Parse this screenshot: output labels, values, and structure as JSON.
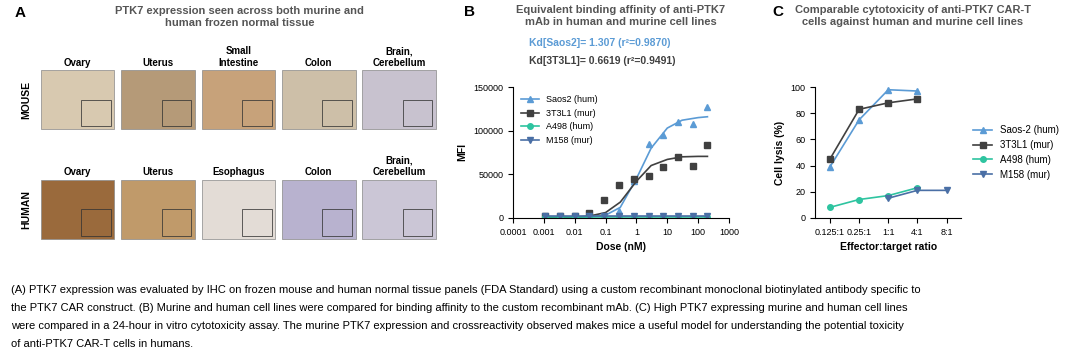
{
  "panel_a": {
    "panel_label": "A",
    "title": "PTK7 expression seen across both murine and human frozen normal tissue",
    "rows": [
      {
        "label": "MOUSE",
        "tissues": [
          "Ovary",
          "Uterus",
          "Small Intestine",
          "Colon",
          "Brain, Cerebellum"
        ]
      },
      {
        "label": "HUMAN",
        "tissues": [
          "Ovary",
          "Uterus",
          "Esophagus",
          "Colon",
          "Brain, Cerebellum"
        ]
      }
    ]
  },
  "chart_data": [
    {
      "type": "scatter",
      "panel_label": "B",
      "title": "Equivalent binding affinity of anti-PTK7 mAb in human and murine cell lines",
      "x_label": "Dose (nM)",
      "y_label": "MFI",
      "log": "x",
      "grid": false,
      "legend": "upper left",
      "xlim": [
        0.0001,
        1000
      ],
      "xticks": [
        0.0001,
        0.001,
        0.01,
        0.1,
        1,
        10,
        100,
        1000
      ],
      "ylim": [
        0,
        150000
      ],
      "yticks": [
        0,
        50000,
        100000,
        150000
      ],
      "annotations": [
        {
          "text": "Kd[Saos2]= 1.307 (r²=0.9870)",
          "color": "#5b9bd5"
        },
        {
          "text": "Kd[3T3L1]= 0.6619 (r²=0.9491)",
          "color": "#404040"
        }
      ],
      "x": [
        0.0011,
        0.0034,
        0.01,
        0.03,
        0.09,
        0.27,
        0.82,
        2.5,
        7.4,
        22,
        67,
        200
      ],
      "fit_x": [
        0.001,
        0.01,
        0.03,
        0.1,
        0.3,
        1,
        3,
        10,
        30,
        100,
        200
      ],
      "series": [
        {
          "name": "Saos2 (hum)",
          "color": "#5b9bd5",
          "marker": "triangle_up",
          "values": [
            1500,
            1500,
            1500,
            2000,
            3000,
            8000,
            42000,
            85000,
            95000,
            110000,
            108000,
            127000
          ],
          "fit_values": [
            0,
            200,
            1000,
            3000,
            12000,
            45000,
            80000,
            103000,
            112000,
            115000,
            116000
          ]
        },
        {
          "name": "3T3L1 (mur)",
          "color": "#404040",
          "marker": "square",
          "values": [
            1500,
            1500,
            2000,
            6000,
            20000,
            38000,
            45000,
            48000,
            58000,
            70000,
            60000,
            83000
          ],
          "fit_values": [
            0,
            500,
            2000,
            6000,
            18000,
            42000,
            60000,
            67000,
            70000,
            70500,
            70500
          ]
        },
        {
          "name": "A498 (hum)",
          "color": "#2ec4a0",
          "marker": "circle",
          "values": [
            1000,
            1000,
            1000,
            1000,
            1000,
            1000,
            1000,
            1000,
            1000,
            1000,
            1000,
            1000
          ],
          "fit_values": [
            1000,
            1000,
            1000,
            1000,
            1000,
            1000,
            1000,
            1000,
            1000,
            1000,
            1000
          ]
        },
        {
          "name": "M158 (mur)",
          "color": "#4a6fa5",
          "marker": "triangle_down",
          "values": [
            1500,
            1500,
            1500,
            1500,
            1500,
            1500,
            1500,
            1500,
            1500,
            1500,
            1500,
            1500
          ],
          "fit_values": [
            1500,
            1500,
            1500,
            1500,
            1500,
            1500,
            1500,
            1500,
            1500,
            1500,
            1500
          ]
        }
      ]
    },
    {
      "type": "line",
      "panel_label": "C",
      "title": "Comparable cytotoxicity of anti-PTK7 CAR-T cells against human and murine cell lines",
      "x_label": "Effector:target ratio",
      "y_label": "Cell lysis (%)",
      "grid": false,
      "legend": "right",
      "categories": [
        "0.125:1",
        "0.25:1",
        "1:1",
        "4:1",
        "8:1"
      ],
      "ylim": [
        0,
        100
      ],
      "yticks": [
        0,
        20,
        40,
        60,
        80,
        100
      ],
      "series": [
        {
          "name": "Saos-2 (hum)",
          "color": "#5b9bd5",
          "marker": "triangle_up",
          "values": [
            39,
            75,
            98,
            97,
            null
          ]
        },
        {
          "name": "3T3L1 (mur)",
          "color": "#404040",
          "marker": "square",
          "values": [
            45,
            83,
            88,
            91,
            null
          ]
        },
        {
          "name": "A498 (hum)",
          "color": "#2ec4a0",
          "marker": "circle",
          "values": [
            8,
            14,
            17,
            23,
            null
          ]
        },
        {
          "name": "M158 (mur)",
          "color": "#4a6fa5",
          "marker": "triangle_down",
          "values": [
            null,
            null,
            15,
            21,
            21
          ]
        }
      ]
    }
  ],
  "caption": [
    "(A) PTK7 expression was evaluated by IHC on frozen mouse and human normal tissue panels (FDA Standard) using a custom recombinant monoclonal biotinylated antibody specific to",
    "the PTK7 CAR construct. (B) Murine and human cell lines were compared for binding affinity to the custom recombinant mAb. (C) High PTK7 expressing murine and human cell lines",
    "were compared in a 24-hour in vitro cytotoxicity assay. The murine PTK7 expression and crossreactivity observed makes mice a useful model for understanding the potential toxicity",
    "of anti-PTK7 CAR-T cells in humans."
  ]
}
